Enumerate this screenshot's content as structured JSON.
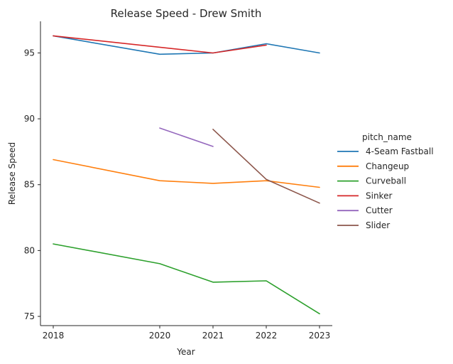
{
  "chart_data": {
    "type": "line",
    "title": "Release Speed - Drew Smith",
    "xlabel": "Year",
    "ylabel": "Release Speed",
    "x": [
      "2018",
      "2020",
      "2021",
      "2022",
      "2023"
    ],
    "ylim": [
      74.3,
      97.4
    ],
    "yticks": [
      75,
      80,
      85,
      90,
      95
    ],
    "grid": false,
    "legend_title": "pitch_name",
    "legend_position": "right",
    "series": [
      {
        "name": "4-Seam Fastball",
        "color": "#1f77b4",
        "values": [
          96.3,
          94.9,
          95.0,
          95.7,
          95.0
        ]
      },
      {
        "name": "Changeup",
        "color": "#ff7f0e",
        "values": [
          86.9,
          85.3,
          85.1,
          85.3,
          84.8
        ]
      },
      {
        "name": "Curveball",
        "color": "#2ca02c",
        "values": [
          80.5,
          79.0,
          77.6,
          77.7,
          75.2
        ]
      },
      {
        "name": "Sinker",
        "color": "#d62728",
        "values": [
          96.3,
          null,
          95.0,
          95.6,
          null
        ]
      },
      {
        "name": "Cutter",
        "color": "#9467bd",
        "values": [
          null,
          89.3,
          87.9,
          null,
          null
        ]
      },
      {
        "name": "Slider",
        "color": "#8c564b",
        "values": [
          null,
          null,
          89.2,
          85.4,
          83.6
        ]
      }
    ]
  }
}
